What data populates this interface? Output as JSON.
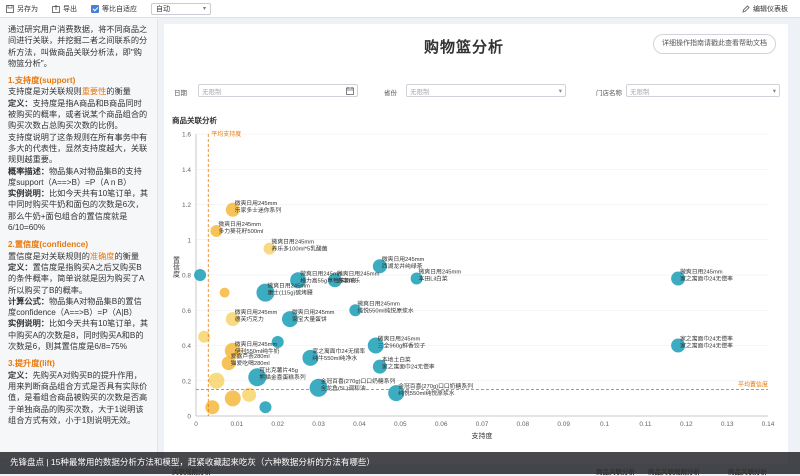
{
  "toolbar": {
    "save_as": "另存为",
    "export": "导出",
    "adaptive": "等比自适应",
    "zoom_value": "自动",
    "edit": "编辑仪表板"
  },
  "left_panel": {
    "intro": "通过研究用户消费数据，将不同商品之间进行关联，并挖掘二者之间联系的分析方法，叫做商品关联分析法，即\"购物篮分析\"。",
    "support_heading": "1.支持度(support)",
    "support_def_prefix": "支持度是对关联规则",
    "support_def_hl": "重要性",
    "support_def_suffix": "的衡量",
    "support_def2_label": "定义：",
    "support_def2": "支持度是指A商品和B商品同时被购买的概率，或者说某个商品组合的购买次数占总购买次数的比例。",
    "support_desc": "支持度说明了这条规则在所有事务中有多大的代表性，显然支持度越大，关联规则越重要。",
    "support_formula_label": "概率描述：",
    "support_formula": "物品集A对物品集B的支持度support（A==>B）=P（A n B）",
    "support_example_label": "实例说明：",
    "support_example": "比如今天共有10笔订单，其中同时购买牛奶和面包的次数是6次，那么牛奶+面包组合的置信度就是6/10=60%",
    "confidence_heading": "2.置信度(confidence)",
    "confidence_def_prefix": "置信度是对关联规则的",
    "confidence_def_hl": "准确度",
    "confidence_def_suffix": "的衡量",
    "confidence_def2_label": "定义：",
    "confidence_def2": "置信度是指购买A之后又购买B的条件概率，简单说就是因为购买了A所以购买了B的概率。",
    "confidence_formula_label": "计算公式：",
    "confidence_formula": "物品集A对物品集B的置信度confidence（A==>B）=P（A|B）",
    "confidence_example_label": "实例说明：",
    "confidence_example": "比如今天共有10笔订单，其中购买A的次数是8，同时购买A和B的次数是6，则其置信度是6/8=75%",
    "lift_heading": "3.提升度(lift)",
    "lift_def_label": "定义：",
    "lift_def": "先购买A对购买B的提升作用，用来判断商品组合方式是否具有实际价值，是看组合商品被购买的次数是否高于单独商品的购买次数，大于1说明该组合方式有效，小于1则说明无效。"
  },
  "main": {
    "title": "购物篮分析",
    "help_button": "详细操作指南请戳此查看帮助文档",
    "filters": {
      "date_label": "日期",
      "date_placeholder": "无限制",
      "province_label": "省份",
      "province_placeholder": "无限制",
      "store_label": "门店名称",
      "store_placeholder": "无限制"
    },
    "section_title": "商品关联分析"
  },
  "chart_data": {
    "type": "scatter",
    "xlabel": "支持度",
    "ylabel": "置信度",
    "xlim": [
      0,
      0.14
    ],
    "ylim": [
      0,
      1.6
    ],
    "xticks": [
      "0",
      "0.01",
      "0.02",
      "0.03",
      "0.04",
      "0.05",
      "0.06",
      "0.07",
      "0.08",
      "0.09",
      "0.1",
      "0.11",
      "0.12",
      "0.13",
      "0.14"
    ],
    "yticks": [
      "0",
      "0.2",
      "0.4",
      "0.6",
      "0.8",
      "1",
      "1.2",
      "1.4",
      "1.6"
    ],
    "ref_lines": {
      "avg_support_label": "平均支持度",
      "avg_support_x": 0.003,
      "avg_confidence_label": "平均置信度",
      "avg_confidence_y": 0.15
    },
    "colors": {
      "teal": "#1a9db5",
      "orange": "#f5b83d",
      "yellow": "#f7d36a",
      "ref": "#e8790e"
    },
    "points": [
      {
        "x": 0.009,
        "y": 1.17,
        "r": 7,
        "c": "orange",
        "l1": "微爽日用245mm",
        "l2": "乐家多士迷你系列"
      },
      {
        "x": 0.005,
        "y": 1.05,
        "r": 6,
        "c": "orange",
        "l1": "微爽日用245mm",
        "l2": "多力葵花籽500ml"
      },
      {
        "x": 0.018,
        "y": 0.95,
        "r": 6,
        "c": "yellow",
        "l1": "微爽日用245mm",
        "l2": "养乐多100ml*5乳酸菌"
      },
      {
        "x": 0.045,
        "y": 0.85,
        "r": 7,
        "c": "teal",
        "l1": "微爽日用245mm",
        "l2": "西湖龙井纯绿茶"
      },
      {
        "x": 0.054,
        "y": 0.78,
        "r": 6,
        "c": "teal",
        "l1": "微爽日用245mm",
        "l2": "本田Lil白菜"
      },
      {
        "x": 0.118,
        "y": 0.78,
        "r": 7,
        "c": "teal",
        "l1": "微爽日用245mm",
        "l2": "家之寓面巾24无偿率"
      },
      {
        "x": 0.025,
        "y": 0.77,
        "r": 8,
        "c": "teal",
        "l1": "微爽日用245mm",
        "l2": "格力高55g草莓味百奇"
      },
      {
        "x": 0.034,
        "y": 0.77,
        "r": 7,
        "c": "teal",
        "l1": "微爽日用245mm",
        "l2": "百事可乐"
      },
      {
        "x": 0.017,
        "y": 0.7,
        "r": 9,
        "c": "teal",
        "l1": "微爽日用245mm",
        "l2": "康士(115g)碳烤腰"
      },
      {
        "x": 0.039,
        "y": 0.6,
        "r": 6,
        "c": "teal",
        "l1": "微爽日用245mm",
        "l2": "纯悦550ml纯悦原浆水"
      },
      {
        "x": 0.009,
        "y": 0.55,
        "r": 7,
        "c": "yellow",
        "l1": "微爽日用245mm",
        "l2": "德芙巧克力"
      },
      {
        "x": 0.023,
        "y": 0.55,
        "r": 8,
        "c": "teal",
        "l1": "微爽日用245mm",
        "l2": "家宝大量蛋饼"
      },
      {
        "x": 0.044,
        "y": 0.4,
        "r": 8,
        "c": "teal",
        "l1": "微爽日用245mm",
        "l2": "三全960g鲜香饺子"
      },
      {
        "x": 0.118,
        "y": 0.4,
        "r": 7,
        "c": "teal",
        "l1": "家之寓面巾24无偿率",
        "l2": "家之寓面巾24无偿率"
      },
      {
        "x": 0.028,
        "y": 0.33,
        "r": 8,
        "c": "teal",
        "l1": "家之寓面巾24无偿率",
        "l2": "纯牛550ml纯净水"
      },
      {
        "x": 0.009,
        "y": 0.37,
        "r": 8,
        "c": "orange",
        "l1": "微爽日用245mm",
        "l2": "伊利550ml纯牛奶"
      },
      {
        "x": 0.008,
        "y": 0.3,
        "r": 7,
        "c": "orange",
        "l1": "爱露芦荟280ml",
        "l2": "猫爱吃喝280ml"
      },
      {
        "x": 0.045,
        "y": 0.28,
        "r": 7,
        "c": "teal",
        "l1": "本地土白菜",
        "l2": "家之寓面巾24无偿率"
      },
      {
        "x": 0.015,
        "y": 0.22,
        "r": 9,
        "c": "teal",
        "l1": "可比克薯片45g",
        "l2": "熊猫金喜蛋糕系列"
      },
      {
        "x": 0.03,
        "y": 0.16,
        "r": 9,
        "c": "teal",
        "l1": "金冠百喜(270g)口口奶糖系列",
        "l2": "金龙鱼(5L)调和油"
      },
      {
        "x": 0.049,
        "y": 0.13,
        "r": 8,
        "c": "teal",
        "l1": "金冠百喜(270g)口口奶糖系列",
        "l2": "纯悦550ml纯悦原浆水"
      },
      {
        "x": 0.009,
        "y": 0.1,
        "r": 8,
        "c": "orange",
        "l1": "",
        "l2": ""
      },
      {
        "x": 0.004,
        "y": 0.05,
        "r": 7,
        "c": "orange",
        "l1": "",
        "l2": ""
      },
      {
        "x": 0.001,
        "y": 0.8,
        "r": 6,
        "c": "teal",
        "l1": "",
        "l2": ""
      },
      {
        "x": 0.002,
        "y": 0.45,
        "r": 6,
        "c": "yellow",
        "l1": "",
        "l2": ""
      },
      {
        "x": 0.013,
        "y": 0.12,
        "r": 7,
        "c": "yellow",
        "l1": "",
        "l2": ""
      },
      {
        "x": 0.02,
        "y": 0.42,
        "r": 6,
        "c": "teal",
        "l1": "",
        "l2": ""
      },
      {
        "x": 0.005,
        "y": 0.2,
        "r": 8,
        "c": "yellow",
        "l1": "",
        "l2": ""
      },
      {
        "x": 0.017,
        "y": 0.05,
        "r": 6,
        "c": "teal",
        "l1": "",
        "l2": ""
      },
      {
        "x": 0.007,
        "y": 0.7,
        "r": 5,
        "c": "orange",
        "l1": "",
        "l2": ""
      }
    ]
  },
  "overlay": {
    "caption": "先锋盘点 | 15种最常用的数据分析方法和模型，赶紧收藏起来吃灰（六种数据分析的方法有哪些）",
    "bottom_tabs": [
      "关联规则分析",
      "商品关联分析",
      "商品关联规则分析",
      "商品关联分析"
    ]
  }
}
